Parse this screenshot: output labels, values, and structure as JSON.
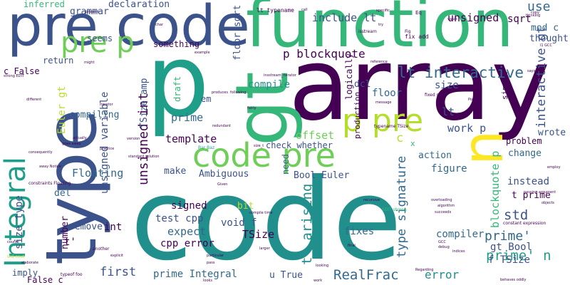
{
  "colors": {
    "dark_purple": "#440154",
    "indigo": "#3b528b",
    "blue": "#31688e",
    "teal": "#21908d",
    "green_teal": "#1f9e89",
    "green": "#35b779",
    "light_green": "#6ece58",
    "lime": "#b5de2b",
    "yellow": "#fde725"
  },
  "words": {
    "code_big": "code",
    "array": "array",
    "function": "function",
    "pre_code": "pre code",
    "p_big": "p",
    "type": "type",
    "gt": "gt",
    "n": "n",
    "integral": "Integral",
    "code_pre": "code pre",
    "pre_p": "pre p",
    "p_pre": "p pre",
    "p_blockquote": "p blockquote",
    "lt_interactive": "lt interactive",
    "type_signature": "type signature",
    "t_arising": "t' arising",
    "realfrac": "RealFrac",
    "prime_n": "prime' n",
    "prime_tick": "prime'",
    "error": "error",
    "first": "first",
    "prime_integral": "prime Integral",
    "floating": "Floating",
    "template": "template",
    "prime": "prime",
    "compile": "compile",
    "expect": "expect",
    "signed": "signed",
    "test_cpp": "test cpp",
    "cpp_error": "cpp error",
    "unsigned_int": "unsigned int",
    "unsigned_variable": "unsigned variable",
    "unsigned": "unsigned",
    "sqrt": "sqrt",
    "use": "use",
    "mod_c": "mod c",
    "thought": "thought",
    "interactive_gt": "interactive gt",
    "blockquote_p": "blockquote p",
    "std": "std",
    "gt_bool": "gt Bool",
    "f_tsize": "f TSize",
    "compiler": "compiler",
    "wrote": "wrote",
    "problem": "problem",
    "change": "change",
    "instead": "instead",
    "t_prime": "t prime",
    "work_p": "work p",
    "lt": "lt",
    "size": "size",
    "figure": "figure",
    "action": "action",
    "offset": "offset",
    "check_whether": "check whether",
    "bool_euler": "Bool Euler",
    "ambiguous": "Ambiguous",
    "make": "make",
    "need": "need",
    "tsize_amp": "TSize amp",
    "tsize": "TSize",
    "void_f": "void f",
    "bit": "bit",
    "fixes": "fixes",
    "u_true": "u True",
    "include_lt": "include lt",
    "declaration": "declaration",
    "grammar": "grammar",
    "inferred": "inferred",
    "seems": "seems",
    "something": "something",
    "floor_sqrt": "floor sqrt",
    "return": "return",
    "c_false": "c False",
    "euler_gt": "Euler gt",
    "compiling": "compiling",
    "size_type": "size type",
    "remove": "remove",
    "del": "del",
    "int": "int",
    "imply": "imply",
    "false_c": "False c",
    "number": "number",
    "t_tick": "t'",
    "em": "em",
    "dcl": "dcl",
    "floor": "floor",
    "logically": "logically",
    "draft": "draft",
    "production": "production",
    "c_small": "c",
    "x_small": "x",
    "simple": "simple",
    "lt_typename": "lt typename",
    "fix_add": "fix add",
    "mod": "mod",
    "eq": "Eq",
    "isstream": "isstream",
    "fixed_size": "fixed size",
    "typename_tsize": "typename TSize",
    "edit_strong": "EDIT strong",
    "std_cout": "std cout",
    "typeof_foo": "typeof foo",
    "bar_baz": "Bar Baz",
    "make_float": "make float",
    "standard_solution": "standard solution",
    "iterator": "iterator",
    "version": "version",
    "goes_away": "goes away",
    "practice": "practice",
    "different": "different",
    "constraints_floating": "constraints Floating",
    "insstream_iterator": "insstream_iterator",
    "produces": "produces",
    "following": "following",
    "fairly": "fairly",
    "redundant": "redundant",
    "given": "Given",
    "compile_time": "compile time",
    "recursive": "recursive",
    "overloading": "overloading",
    "algorithm": "algorithm",
    "succeeds": "succeeds",
    "constant_expression": "constant expression",
    "passing_argument": "passing argument",
    "objects": "objects",
    "behaves_oddly": "behaves oddly",
    "final": "final",
    "larger": "larger",
    "particular": "particular",
    "pass": "pass",
    "looks": "looks",
    "work_small": "work",
    "looking": "looking",
    "regarding": "Regarding",
    "explicit": "explicit",
    "course": "course",
    "elaborate": "elaborate",
    "another": "another",
    "strong_edit": "strong EDIT",
    "actually": "actually",
    "notice": "away Notice",
    "consequently": "consequently",
    "present": "present",
    "might": "might",
    "reference": "reference",
    "message": "message",
    "specific": "specific",
    "thinking": "thinking",
    "copy": "copy",
    "value": "value",
    "says": "says",
    "try": "try",
    "isn_fix": "Fig",
    "call": "call",
    "char": "char",
    "gcc": "GCC",
    "debug": "debug",
    "indices": "indices",
    "example": "example",
    "unsigned_lit": "l1 GCC",
    "size_t": "size_t",
    "dfs": "dfs",
    "variable_small": "variable",
    "pop": "Pop",
    "real": "real",
    "fix": "fix",
    "employ": "employ"
  }
}
